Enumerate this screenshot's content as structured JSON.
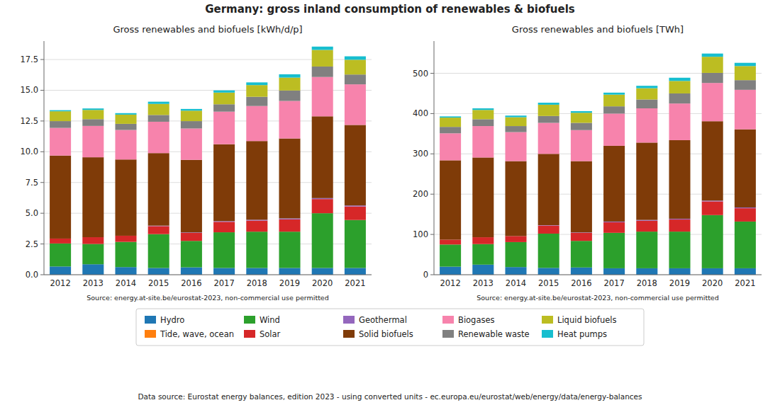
{
  "title": "Germany: gross inland consumption of renewables & biofuels",
  "annotations": [
    "Data source: Eurostat energy balances, edition 2023 - using converted units - ec.europa.eu/eurostat/web/energy/data/energy-balances"
  ],
  "chart_data": [
    {
      "type": "bar",
      "stacked": true,
      "grid": true,
      "legend": "bottom",
      "title": "Gross renewables and biofuels [kWh/d/p]",
      "annotations": [
        "Source: energy.at-site.be/eurostat-2023, non-commercial use permitted"
      ],
      "categories": [
        "2012",
        "2013",
        "2014",
        "2015",
        "2016",
        "2017",
        "2018",
        "2019",
        "2020",
        "2021"
      ],
      "ylim": [
        0,
        19
      ],
      "yticks": [
        {
          "value": 0,
          "label": "0.0"
        },
        2.5,
        {
          "value": 5,
          "label": "5.0"
        },
        7.5,
        {
          "value": 10,
          "label": "10.0"
        },
        12.5,
        {
          "value": 15,
          "label": "15.0"
        },
        17.5
      ],
      "series": [
        {
          "name": "Hydro",
          "color": "#1f77b4",
          "values": [
            0.67,
            0.85,
            0.62,
            0.55,
            0.6,
            0.55,
            0.55,
            0.55,
            0.55,
            0.55
          ]
        },
        {
          "name": "Tide, wave, ocean",
          "color": "#ff7f0e",
          "values": [
            0.0,
            0.0,
            0.0,
            0.0,
            0.0,
            0.0,
            0.0,
            0.0,
            0.0,
            0.0
          ]
        },
        {
          "name": "Wind",
          "color": "#2ca02c",
          "values": [
            1.87,
            1.65,
            2.05,
            2.75,
            2.15,
            2.9,
            2.95,
            2.95,
            4.45,
            3.9
          ]
        },
        {
          "name": "Solar",
          "color": "#d62728",
          "values": [
            0.4,
            0.55,
            0.5,
            0.65,
            0.65,
            0.85,
            0.9,
            1.0,
            1.15,
            1.1
          ]
        },
        {
          "name": "Geothermal",
          "color": "#9467bd",
          "values": [
            0.0,
            0.0,
            0.0,
            0.04,
            0.04,
            0.06,
            0.07,
            0.08,
            0.08,
            0.08
          ]
        },
        {
          "name": "Solid biofuels",
          "color": "#7f3b08",
          "values": [
            6.75,
            6.5,
            6.2,
            5.9,
            5.9,
            6.25,
            6.4,
            6.5,
            6.65,
            6.55
          ]
        },
        {
          "name": "Biogases",
          "color": "#f783ac",
          "values": [
            2.25,
            2.55,
            2.4,
            2.55,
            2.55,
            2.65,
            2.85,
            3.05,
            3.2,
            3.3
          ]
        },
        {
          "name": "Renewable waste",
          "color": "#808080",
          "values": [
            0.55,
            0.55,
            0.5,
            0.55,
            0.6,
            0.6,
            0.75,
            0.85,
            0.85,
            0.8
          ]
        },
        {
          "name": "Liquid biofuels",
          "color": "#bcbd22",
          "values": [
            0.8,
            0.75,
            0.75,
            0.9,
            0.85,
            0.95,
            0.95,
            1.05,
            1.35,
            1.2
          ]
        },
        {
          "name": "Heat pumps",
          "color": "#17becf",
          "values": [
            0.09,
            0.12,
            0.12,
            0.18,
            0.14,
            0.18,
            0.22,
            0.27,
            0.27,
            0.28
          ]
        }
      ]
    },
    {
      "type": "bar",
      "stacked": true,
      "grid": true,
      "title": "Gross renewables and biofuels [TWh]",
      "annotations": [
        "Source: energy.at-site.be/eurostat-2023, non-commercial use permitted"
      ],
      "categories": [
        "2012",
        "2013",
        "2014",
        "2015",
        "2016",
        "2017",
        "2018",
        "2019",
        "2020",
        "2021"
      ],
      "ylim": [
        0,
        580
      ],
      "yticks": [
        0,
        100,
        200,
        300,
        400,
        500
      ],
      "series": [
        {
          "name": "Hydro",
          "color": "#1f77b4",
          "values": [
            20,
            25,
            19,
            17,
            18,
            16,
            16,
            16,
            16,
            16
          ]
        },
        {
          "name": "Tide, wave, ocean",
          "color": "#ff7f0e",
          "values": [
            0,
            0,
            0,
            0,
            0,
            0,
            0,
            0,
            0,
            0
          ]
        },
        {
          "name": "Wind",
          "color": "#2ca02c",
          "values": [
            55,
            51,
            62,
            85,
            66,
            88,
            91,
            91,
            132,
            116
          ]
        },
        {
          "name": "Solar",
          "color": "#d62728",
          "values": [
            12,
            17,
            15,
            20,
            20,
            26,
            27,
            30,
            34,
            33
          ]
        },
        {
          "name": "Geothermal",
          "color": "#9467bd",
          "values": [
            0,
            0,
            0,
            1,
            1,
            2,
            2,
            2,
            2,
            2
          ]
        },
        {
          "name": "Solid biofuels",
          "color": "#7f3b08",
          "values": [
            197,
            198,
            186,
            177,
            177,
            188,
            192,
            195,
            197,
            194
          ]
        },
        {
          "name": "Biogases",
          "color": "#f783ac",
          "values": [
            67,
            78,
            72,
            77,
            77,
            80,
            85,
            91,
            95,
            98
          ]
        },
        {
          "name": "Renewable waste",
          "color": "#808080",
          "values": [
            16,
            17,
            15,
            17,
            18,
            18,
            22,
            25,
            25,
            24
          ]
        },
        {
          "name": "Liquid biofuels",
          "color": "#bcbd22",
          "values": [
            23,
            23,
            22,
            28,
            25,
            29,
            28,
            31,
            40,
            35
          ]
        },
        {
          "name": "Heat pumps",
          "color": "#17becf",
          "values": [
            3,
            4,
            4,
            5,
            4,
            5,
            6,
            8,
            8,
            8
          ]
        }
      ]
    }
  ]
}
